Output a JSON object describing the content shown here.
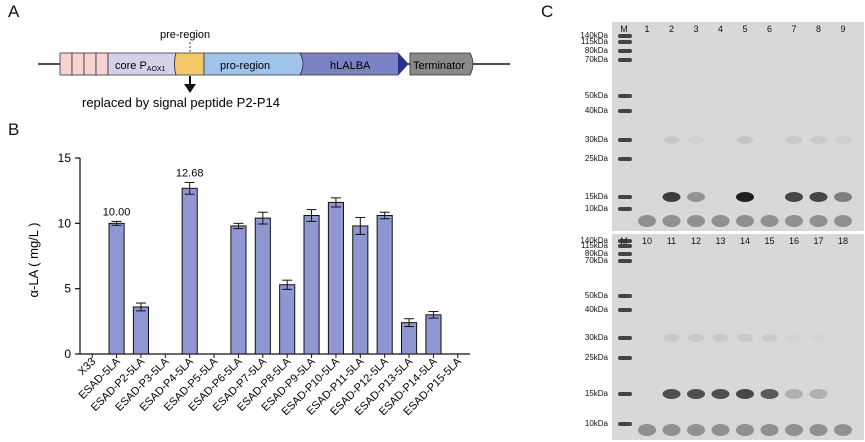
{
  "panel_a": {
    "label": "A",
    "pre_region_label": "pre-region",
    "segments": {
      "core": "core P",
      "core_sub": "AOX1",
      "pro_region": "pro-region",
      "hlalba": "hLALBA",
      "terminator": "Terminator"
    },
    "replaced_text": "replaced by signal peptide P2-P14",
    "colors": {
      "repeat_boxes": "#f6d3d3",
      "core": "#d6d0ea",
      "pre_region": "#f5c96a",
      "pro_region": "#9fc3ea",
      "hlalba": "#7b82c2",
      "hlalba_end": "#2b2f8c",
      "terminator": "#8a8a8a"
    }
  },
  "panel_b": {
    "label": "B",
    "chart_data": {
      "type": "bar",
      "ylabel": "α-LA ( mg/L )",
      "ylim": [
        0,
        15
      ],
      "yticks": [
        0,
        5,
        10,
        15
      ],
      "bar_color": "#8e97d0",
      "categories": [
        "X33",
        "ESAD-5LA",
        "ESAD-P2-5LA",
        "ESAD-P3-5LA",
        "ESAD-P4-5LA",
        "ESAD-P5-5LA",
        "ESAD-P6-5LA",
        "ESAD-P7-5LA",
        "ESAD-P8-5LA",
        "ESAD-P9-5LA",
        "ESAD-P10-5LA",
        "ESAD-P11-5LA",
        "ESAD-P12-5LA",
        "ESAD-P13-5LA",
        "ESAD-P14-5LA",
        "ESAD-P15-5LA"
      ],
      "values": [
        0,
        10.0,
        3.6,
        0,
        12.68,
        0,
        9.8,
        10.4,
        5.3,
        10.6,
        11.6,
        9.8,
        10.6,
        2.4,
        3.0,
        0
      ],
      "errors": [
        0,
        0.15,
        0.3,
        0,
        0.45,
        0,
        0.2,
        0.45,
        0.35,
        0.45,
        0.35,
        0.65,
        0.25,
        0.3,
        0.25,
        0
      ],
      "data_labels": [
        {
          "index": 1,
          "text": "10.00"
        },
        {
          "index": 4,
          "text": "12.68"
        }
      ]
    }
  },
  "panel_c": {
    "label": "C",
    "marker_lane_label": "M",
    "markers": [
      "140kDa",
      "115kDa",
      "80kDa",
      "70kDa",
      "50kDa",
      "40kDa",
      "30kDa",
      "25kDa",
      "15kDa",
      "10kDa"
    ],
    "top_lanes": [
      "1",
      "2",
      "3",
      "4",
      "5",
      "6",
      "7",
      "8",
      "9"
    ],
    "bottom_lanes": [
      "10",
      "11",
      "12",
      "13",
      "14",
      "15",
      "16",
      "17",
      "18"
    ],
    "top_band_15": [
      0,
      0.8,
      0.35,
      0,
      0.95,
      0,
      0.75,
      0.75,
      0.45
    ],
    "bottom_band_15": [
      0,
      0.7,
      0.7,
      0.7,
      0.75,
      0.65,
      0.2,
      0.2,
      0
    ]
  }
}
